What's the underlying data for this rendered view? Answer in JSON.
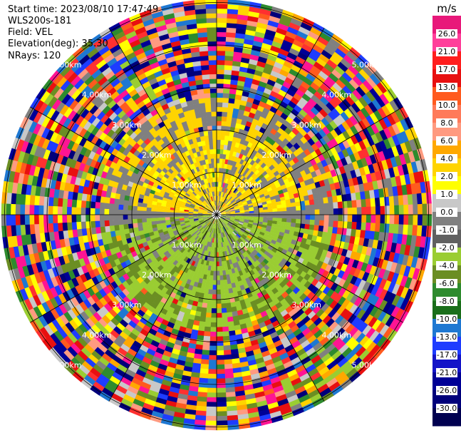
{
  "header": {
    "start_time": "Start time: 2023/08/10 17:47:49",
    "instrument": "WLS200s-181",
    "field": "Field: VEL",
    "elevation": "Elevation(deg): 35.30",
    "nrays": "NRays: 120"
  },
  "chart_data": {
    "type": "heatmap",
    "subtype": "polar PPI scan",
    "field": "VEL",
    "units": "m/s",
    "n_rays": 120,
    "elevation_deg": 35.3,
    "range_ring_labels": [
      "1.00km",
      "2.00km",
      "3.00km",
      "4.00km",
      "5.00km"
    ],
    "colorbar": {
      "title": "m/s",
      "ticks": [
        "26.0",
        "21.0",
        "17.0",
        "13.0",
        "10.0",
        "8.0",
        "6.0",
        "4.0",
        "2.0",
        "1.0",
        "0.0",
        "-1.0",
        "-2.0",
        "-4.0",
        "-6.0",
        "-8.0",
        "-10.0",
        "-13.0",
        "-17.0",
        "-21.0",
        "-26.0",
        "-30.0"
      ],
      "colors": [
        "#e8187a",
        "#ff3f9a",
        "#ff1e1e",
        "#e81010",
        "#ff5a1e",
        "#ff7a5a",
        "#ff9a80",
        "#ffa800",
        "#ffd400",
        "#ffff00",
        "#c8c8c8",
        "#808080",
        "#606060",
        "#9acd32",
        "#6b8e23",
        "#2e8b2e",
        "#1a6e1a",
        "#1e78d2",
        "#1e3cff",
        "#1414c8",
        "#000096",
        "#00007a",
        "#000050"
      ]
    }
  }
}
